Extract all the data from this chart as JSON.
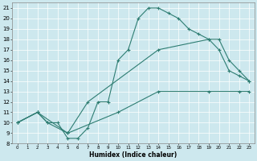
{
  "xlabel": "Humidex (Indice chaleur)",
  "xlim": [
    -0.5,
    23.5
  ],
  "ylim": [
    8,
    21.5
  ],
  "yticks": [
    8,
    9,
    10,
    11,
    12,
    13,
    14,
    15,
    16,
    17,
    18,
    19,
    20,
    21
  ],
  "xticks": [
    0,
    1,
    2,
    3,
    4,
    5,
    6,
    7,
    8,
    9,
    10,
    11,
    12,
    13,
    14,
    15,
    16,
    17,
    18,
    19,
    20,
    21,
    22,
    23
  ],
  "bg_color": "#cde8ee",
  "line_color": "#2e7d72",
  "line1_x": [
    0,
    2,
    3,
    4,
    5,
    6,
    7,
    8,
    9,
    10,
    11,
    12,
    13,
    14,
    15,
    16,
    17,
    18,
    19,
    20,
    21,
    22,
    23
  ],
  "line1_y": [
    10,
    11,
    10,
    10,
    8.5,
    8.5,
    9.5,
    12,
    12,
    16,
    17,
    20,
    21,
    21,
    20.5,
    20,
    19,
    18.5,
    18,
    18,
    16,
    15,
    14
  ],
  "line2_x": [
    0,
    2,
    3,
    5,
    7,
    14,
    19,
    20,
    21,
    22,
    23
  ],
  "line2_y": [
    10,
    11,
    10,
    9,
    12,
    17,
    18,
    17,
    15,
    14.5,
    14
  ],
  "line3_x": [
    0,
    2,
    5,
    10,
    14,
    19,
    22,
    23
  ],
  "line3_y": [
    10,
    11,
    9,
    11,
    13,
    13,
    13,
    13
  ]
}
